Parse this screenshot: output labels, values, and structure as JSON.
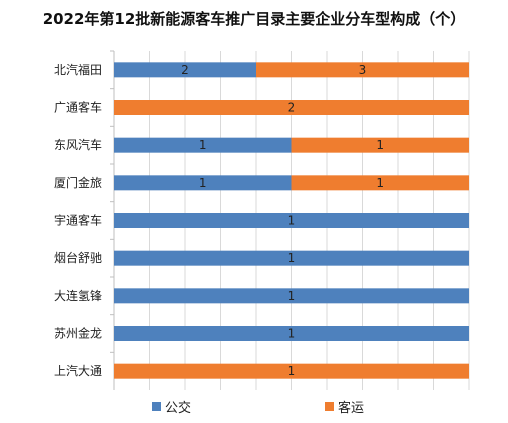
{
  "chart_data": {
    "type": "bar",
    "orientation": "horizontal",
    "stacked": true,
    "title": "2022年第12批新能源客车推广目录主要企业分车型构成（个）",
    "categories": [
      "北汽福田",
      "广通客车",
      "东风汽车",
      "厦门金旅",
      "宇通客车",
      "烟台舒驰",
      "大连氢锋",
      "苏州金龙",
      "上汽大通"
    ],
    "series": [
      {
        "name": "公交",
        "color": "#4e81bd",
        "values": [
          2,
          0,
          1,
          1,
          1,
          1,
          1,
          1,
          0
        ]
      },
      {
        "name": "客运",
        "color": "#ef7d2f",
        "values": [
          3,
          2,
          1,
          1,
          0,
          0,
          0,
          0,
          1
        ]
      }
    ],
    "percent_stacked": true,
    "grid": true,
    "legend_position": "bottom"
  }
}
